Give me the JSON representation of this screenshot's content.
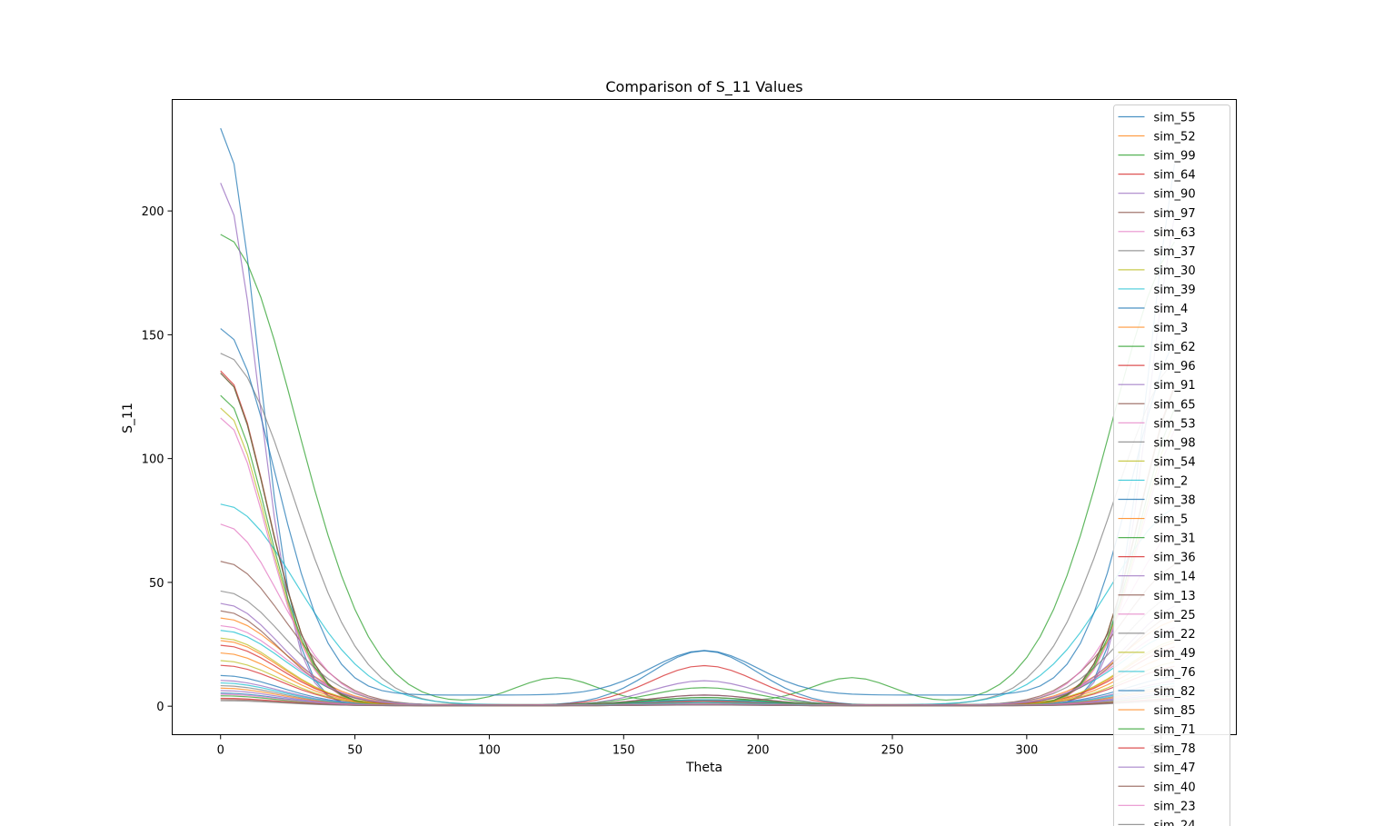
{
  "chart_data": {
    "type": "line",
    "title": "Comparison of S_11 Values",
    "xlabel": "Theta",
    "ylabel": "S_11",
    "xlim": [
      -18,
      378
    ],
    "ylim": [
      -11.5,
      245
    ],
    "xticks": [
      0,
      50,
      100,
      150,
      200,
      250,
      300,
      350
    ],
    "yticks": [
      0,
      50,
      100,
      150,
      200
    ],
    "grid": false,
    "legend_position": "top-right",
    "x": [
      0,
      5,
      10,
      15,
      20,
      25,
      30,
      35,
      40,
      45,
      50,
      55,
      60,
      65,
      70,
      75,
      80,
      85,
      90,
      95,
      100,
      105,
      110,
      115,
      120,
      125,
      130,
      135,
      140,
      145,
      150,
      155,
      160,
      165,
      170,
      175,
      180,
      185,
      190,
      195,
      200,
      205,
      210,
      215,
      220,
      225,
      230,
      235,
      240,
      245,
      250,
      255,
      260,
      265,
      270,
      275,
      280,
      285,
      290,
      295,
      300,
      305,
      310,
      315,
      320,
      325,
      330,
      335,
      340,
      345,
      350,
      355
    ],
    "series": [
      {
        "name": "sim_55",
        "color": "#1f77b4",
        "peak": 233,
        "width": 9,
        "floor": 0.4,
        "mid": 22
      },
      {
        "name": "sim_52",
        "color": "#ff7f0e",
        "peak": 35,
        "width": 15,
        "floor": 0.6,
        "mid": 1.5
      },
      {
        "name": "sim_99",
        "color": "#2ca02c",
        "peak": 190,
        "width": 18,
        "floor": 0.5,
        "mid": 2,
        "side": 11
      },
      {
        "name": "sim_64",
        "color": "#d62728",
        "peak": 135,
        "width": 11,
        "floor": 0.4,
        "mid": 16
      },
      {
        "name": "sim_90",
        "color": "#9467bd",
        "peak": 211,
        "width": 9,
        "floor": 0.3,
        "mid": 10
      },
      {
        "name": "sim_97",
        "color": "#8c564b",
        "peak": 58,
        "width": 15,
        "floor": 0.5,
        "mid": 2
      },
      {
        "name": "sim_63",
        "color": "#e377c2",
        "peak": 73,
        "width": 14,
        "floor": 0.5,
        "mid": 1.5
      },
      {
        "name": "sim_37",
        "color": "#7f7f7f",
        "peak": 142,
        "width": 17,
        "floor": 0.5,
        "mid": 3
      },
      {
        "name": "sim_30",
        "color": "#bcbd22",
        "peak": 120,
        "width": 11,
        "floor": 0.4,
        "mid": 2
      },
      {
        "name": "sim_39",
        "color": "#17becf",
        "peak": 81,
        "width": 18,
        "floor": 0.6,
        "mid": 2
      },
      {
        "name": "sim_4",
        "color": "#1f77b4",
        "peak": 148,
        "width": 13,
        "floor": 4.5,
        "mid": 18
      },
      {
        "name": "sim_3",
        "color": "#ff7f0e",
        "peak": 26,
        "width": 14,
        "floor": 0.5,
        "mid": 1
      },
      {
        "name": "sim_62",
        "color": "#2ca02c",
        "peak": 134,
        "width": 11,
        "floor": 0.5,
        "mid": 7
      },
      {
        "name": "sim_96",
        "color": "#d62728",
        "peak": 24,
        "width": 14,
        "floor": 0.6,
        "mid": 2
      },
      {
        "name": "sim_91",
        "color": "#9467bd",
        "peak": 41,
        "width": 14,
        "floor": 0.5,
        "mid": 4
      },
      {
        "name": "sim_65",
        "color": "#8c564b",
        "peak": 134,
        "width": 11,
        "floor": 0.5,
        "mid": 4
      },
      {
        "name": "sim_53",
        "color": "#e377c2",
        "peak": 116,
        "width": 11,
        "floor": 0.4,
        "mid": 2
      },
      {
        "name": "sim_98",
        "color": "#7f7f7f",
        "peak": 46,
        "width": 15,
        "floor": 0.5,
        "mid": 2
      },
      {
        "name": "sim_54",
        "color": "#bcbd22",
        "peak": 27,
        "width": 14,
        "floor": 0.5,
        "mid": 1
      },
      {
        "name": "sim_2",
        "color": "#17becf",
        "peak": 30,
        "width": 15,
        "floor": 0.6,
        "mid": 2
      },
      {
        "name": "sim_38",
        "color": "#1f77b4",
        "peak": 12,
        "width": 14,
        "floor": 0.4,
        "mid": 1
      },
      {
        "name": "sim_5",
        "color": "#ff7f0e",
        "peak": 21,
        "width": 14,
        "floor": 0.5,
        "mid": 1
      },
      {
        "name": "sim_31",
        "color": "#2ca02c",
        "peak": 125,
        "width": 11,
        "floor": 0.5,
        "mid": 3
      },
      {
        "name": "sim_36",
        "color": "#d62728",
        "peak": 16,
        "width": 14,
        "floor": 0.5,
        "mid": 1
      },
      {
        "name": "sim_14",
        "color": "#9467bd",
        "peak": 10,
        "width": 14,
        "floor": 0.4,
        "mid": 1
      },
      {
        "name": "sim_13",
        "color": "#8c564b",
        "peak": 38,
        "width": 14,
        "floor": 0.5,
        "mid": 1.5
      },
      {
        "name": "sim_25",
        "color": "#e377c2",
        "peak": 32,
        "width": 15,
        "floor": 0.5,
        "mid": 1
      },
      {
        "name": "sim_22",
        "color": "#7f7f7f",
        "peak": 8,
        "width": 14,
        "floor": 0.3,
        "mid": 0.5
      },
      {
        "name": "sim_49",
        "color": "#bcbd22",
        "peak": 18,
        "width": 14,
        "floor": 0.4,
        "mid": 1
      },
      {
        "name": "sim_76",
        "color": "#17becf",
        "peak": 9,
        "width": 14,
        "floor": 0.4,
        "mid": 1
      },
      {
        "name": "sim_82",
        "color": "#1f77b4",
        "peak": 5,
        "width": 14,
        "floor": 0.3,
        "mid": 0.5
      },
      {
        "name": "sim_85",
        "color": "#ff7f0e",
        "peak": 7,
        "width": 14,
        "floor": 0.3,
        "mid": 0.5
      },
      {
        "name": "sim_71",
        "color": "#2ca02c",
        "peak": 4,
        "width": 14,
        "floor": 0.2,
        "mid": 0.4
      },
      {
        "name": "sim_78",
        "color": "#d62728",
        "peak": 3,
        "width": 14,
        "floor": 0.2,
        "mid": 0.4
      },
      {
        "name": "sim_47",
        "color": "#9467bd",
        "peak": 6,
        "width": 14,
        "floor": 0.3,
        "mid": 0.5
      },
      {
        "name": "sim_40",
        "color": "#8c564b",
        "peak": 2.5,
        "width": 14,
        "floor": 0.2,
        "mid": 0.3
      },
      {
        "name": "sim_23",
        "color": "#e377c2",
        "peak": 4.5,
        "width": 14,
        "floor": 0.3,
        "mid": 0.4
      },
      {
        "name": "sim_24",
        "color": "#7f7f7f",
        "peak": 2,
        "width": 14,
        "floor": 0.2,
        "mid": 0.3
      }
    ]
  }
}
